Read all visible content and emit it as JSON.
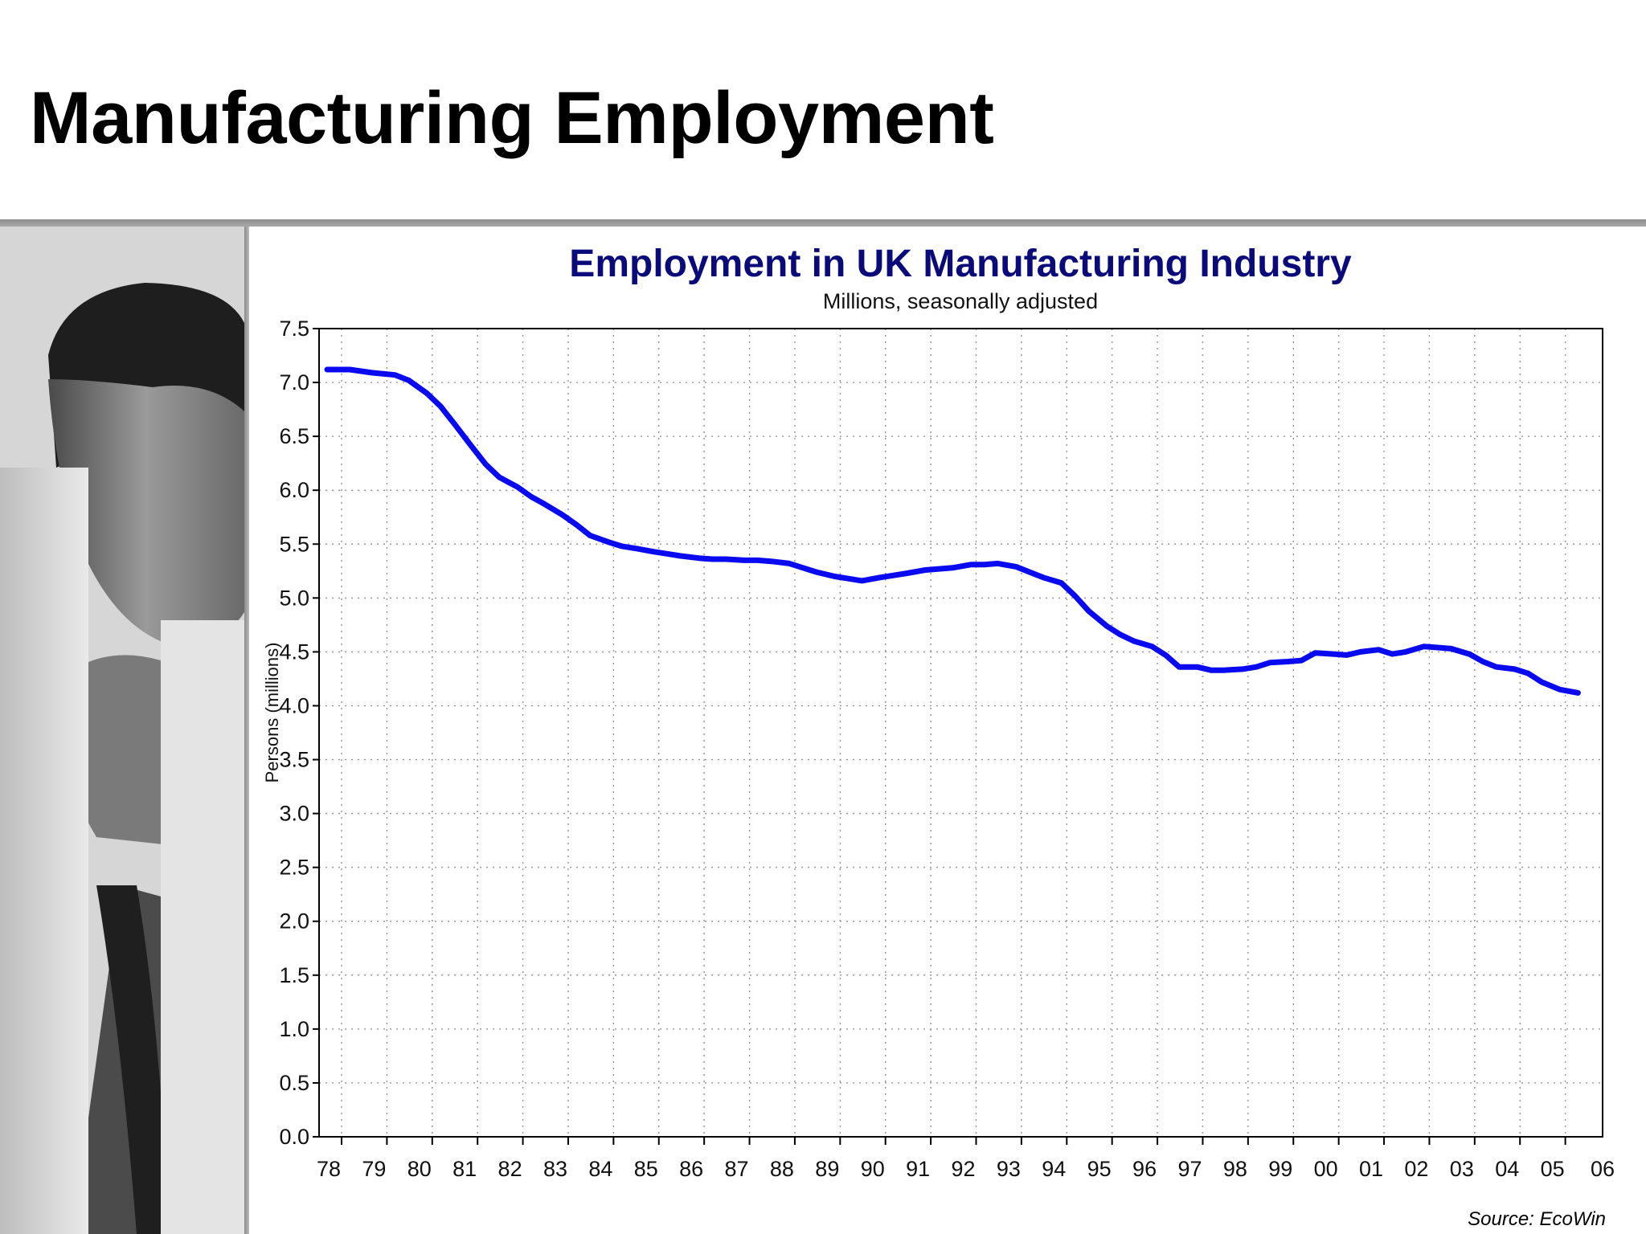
{
  "slide": {
    "title": "Manufacturing Employment"
  },
  "source": "Source: EcoWin",
  "colors": {
    "chart_title": "#0a0a7a",
    "series_line": "#0a0af0",
    "divider": "#999999"
  },
  "photo": {
    "description_icon": "man-thinking-photo"
  },
  "chart_data": {
    "type": "line",
    "title": "Employment in UK Manufacturing Industry",
    "subtitle": "Millions, seasonally adjusted",
    "ylabel": "Persons (millions)",
    "xlabel": "",
    "ylim": [
      0,
      7.5
    ],
    "yticks": [
      "0.0",
      "0.5",
      "1.0",
      "1.5",
      "2.0",
      "2.5",
      "3.0",
      "3.5",
      "4.0",
      "4.5",
      "5.0",
      "5.5",
      "6.0",
      "6.5",
      "7.0",
      "7.5"
    ],
    "xlim": [
      1978,
      2006
    ],
    "xticks": [
      "78",
      "79",
      "80",
      "81",
      "82",
      "83",
      "84",
      "85",
      "86",
      "87",
      "88",
      "89",
      "90",
      "91",
      "92",
      "93",
      "94",
      "95",
      "96",
      "97",
      "98",
      "99",
      "00",
      "01",
      "02",
      "03",
      "04",
      "05",
      "06"
    ],
    "grid": true,
    "x": [
      1978.0,
      1978.5,
      1979.0,
      1979.5,
      1979.8,
      1980.2,
      1980.5,
      1980.8,
      1981.2,
      1981.5,
      1981.8,
      1982.2,
      1982.5,
      1982.8,
      1983.2,
      1983.5,
      1983.8,
      1984.2,
      1984.5,
      1984.8,
      1985.2,
      1985.5,
      1985.8,
      1986.2,
      1986.5,
      1986.8,
      1987.2,
      1987.5,
      1987.8,
      1988.2,
      1988.5,
      1988.8,
      1989.2,
      1989.5,
      1989.8,
      1990.2,
      1990.5,
      1990.8,
      1991.2,
      1991.5,
      1991.8,
      1992.2,
      1992.5,
      1992.8,
      1993.2,
      1993.5,
      1993.8,
      1994.2,
      1994.5,
      1994.8,
      1995.2,
      1995.5,
      1995.8,
      1996.2,
      1996.5,
      1996.8,
      1997.2,
      1997.5,
      1997.8,
      1998.2,
      1998.5,
      1998.8,
      1999.2,
      1999.5,
      1999.8,
      2000.2,
      2000.5,
      2000.8,
      2001.2,
      2001.5,
      2001.8,
      2002.2,
      2002.5,
      2002.8,
      2003.2,
      2003.5,
      2003.8,
      2004.2,
      2004.5,
      2004.8,
      2005.2,
      2005.6
    ],
    "series": [
      {
        "values": [
          7.12,
          7.12,
          7.09,
          7.07,
          7.02,
          6.9,
          6.78,
          6.62,
          6.4,
          6.24,
          6.12,
          6.03,
          5.94,
          5.87,
          5.77,
          5.68,
          5.58,
          5.52,
          5.48,
          5.46,
          5.43,
          5.41,
          5.39,
          5.37,
          5.36,
          5.36,
          5.35,
          5.35,
          5.34,
          5.32,
          5.28,
          5.24,
          5.2,
          5.18,
          5.16,
          5.19,
          5.21,
          5.23,
          5.26,
          5.27,
          5.28,
          5.31,
          5.31,
          5.32,
          5.29,
          5.24,
          5.19,
          5.14,
          5.02,
          4.88,
          4.74,
          4.66,
          4.6,
          4.55,
          4.47,
          4.36,
          4.36,
          4.33,
          4.33,
          4.34,
          4.36,
          4.4,
          4.41,
          4.42,
          4.49,
          4.48,
          4.47,
          4.5,
          4.52,
          4.48,
          4.5,
          4.55,
          4.54,
          4.53,
          4.48,
          4.41,
          4.36,
          4.34,
          4.3,
          4.22,
          4.15,
          4.12
        ]
      }
    ]
  }
}
